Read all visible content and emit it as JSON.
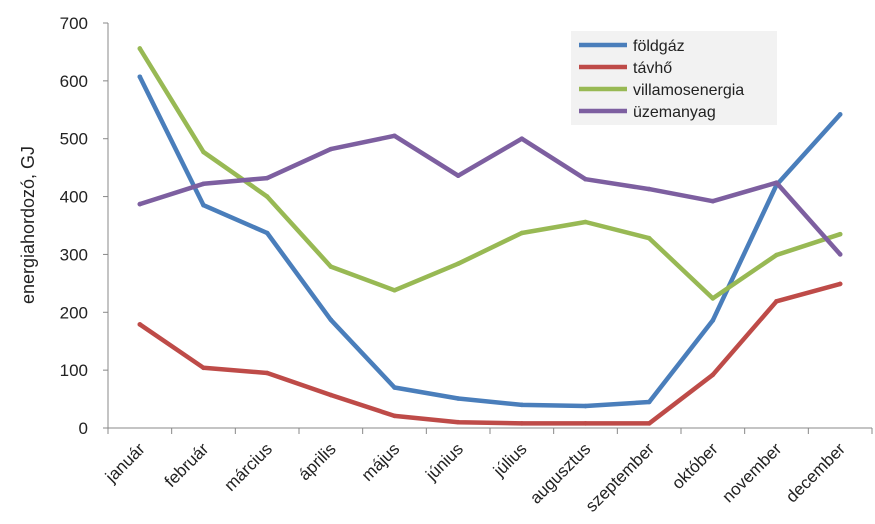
{
  "chart_data": {
    "type": "line",
    "xlabel": "",
    "ylabel": "energiahordozó, GJ",
    "ylim": [
      0,
      700
    ],
    "yticks": [
      0,
      100,
      200,
      300,
      400,
      500,
      600,
      700
    ],
    "grid": false,
    "legend_position": "top-right",
    "categories": [
      "január",
      "február",
      "március",
      "április",
      "május",
      "június",
      "július",
      "augusztus",
      "szeptember",
      "október",
      "november",
      "december"
    ],
    "series": [
      {
        "name": "földgáz",
        "color": "#4a7ebb",
        "values": [
          607,
          385,
          337,
          187,
          70,
          51,
          40,
          38,
          45,
          186,
          420,
          542
        ]
      },
      {
        "name": "távhő",
        "color": "#be4b48",
        "values": [
          179,
          104,
          95,
          57,
          21,
          10,
          8,
          8,
          8,
          92,
          219,
          249
        ]
      },
      {
        "name": "villamosenergia",
        "color": "#98b954",
        "values": [
          656,
          477,
          400,
          279,
          238,
          284,
          337,
          356,
          328,
          224,
          299,
          335
        ]
      },
      {
        "name": "üzemanyag",
        "color": "#7d5fa0",
        "values": [
          387,
          422,
          432,
          482,
          505,
          436,
          500,
          430,
          413,
          392,
          424,
          300
        ]
      }
    ]
  }
}
